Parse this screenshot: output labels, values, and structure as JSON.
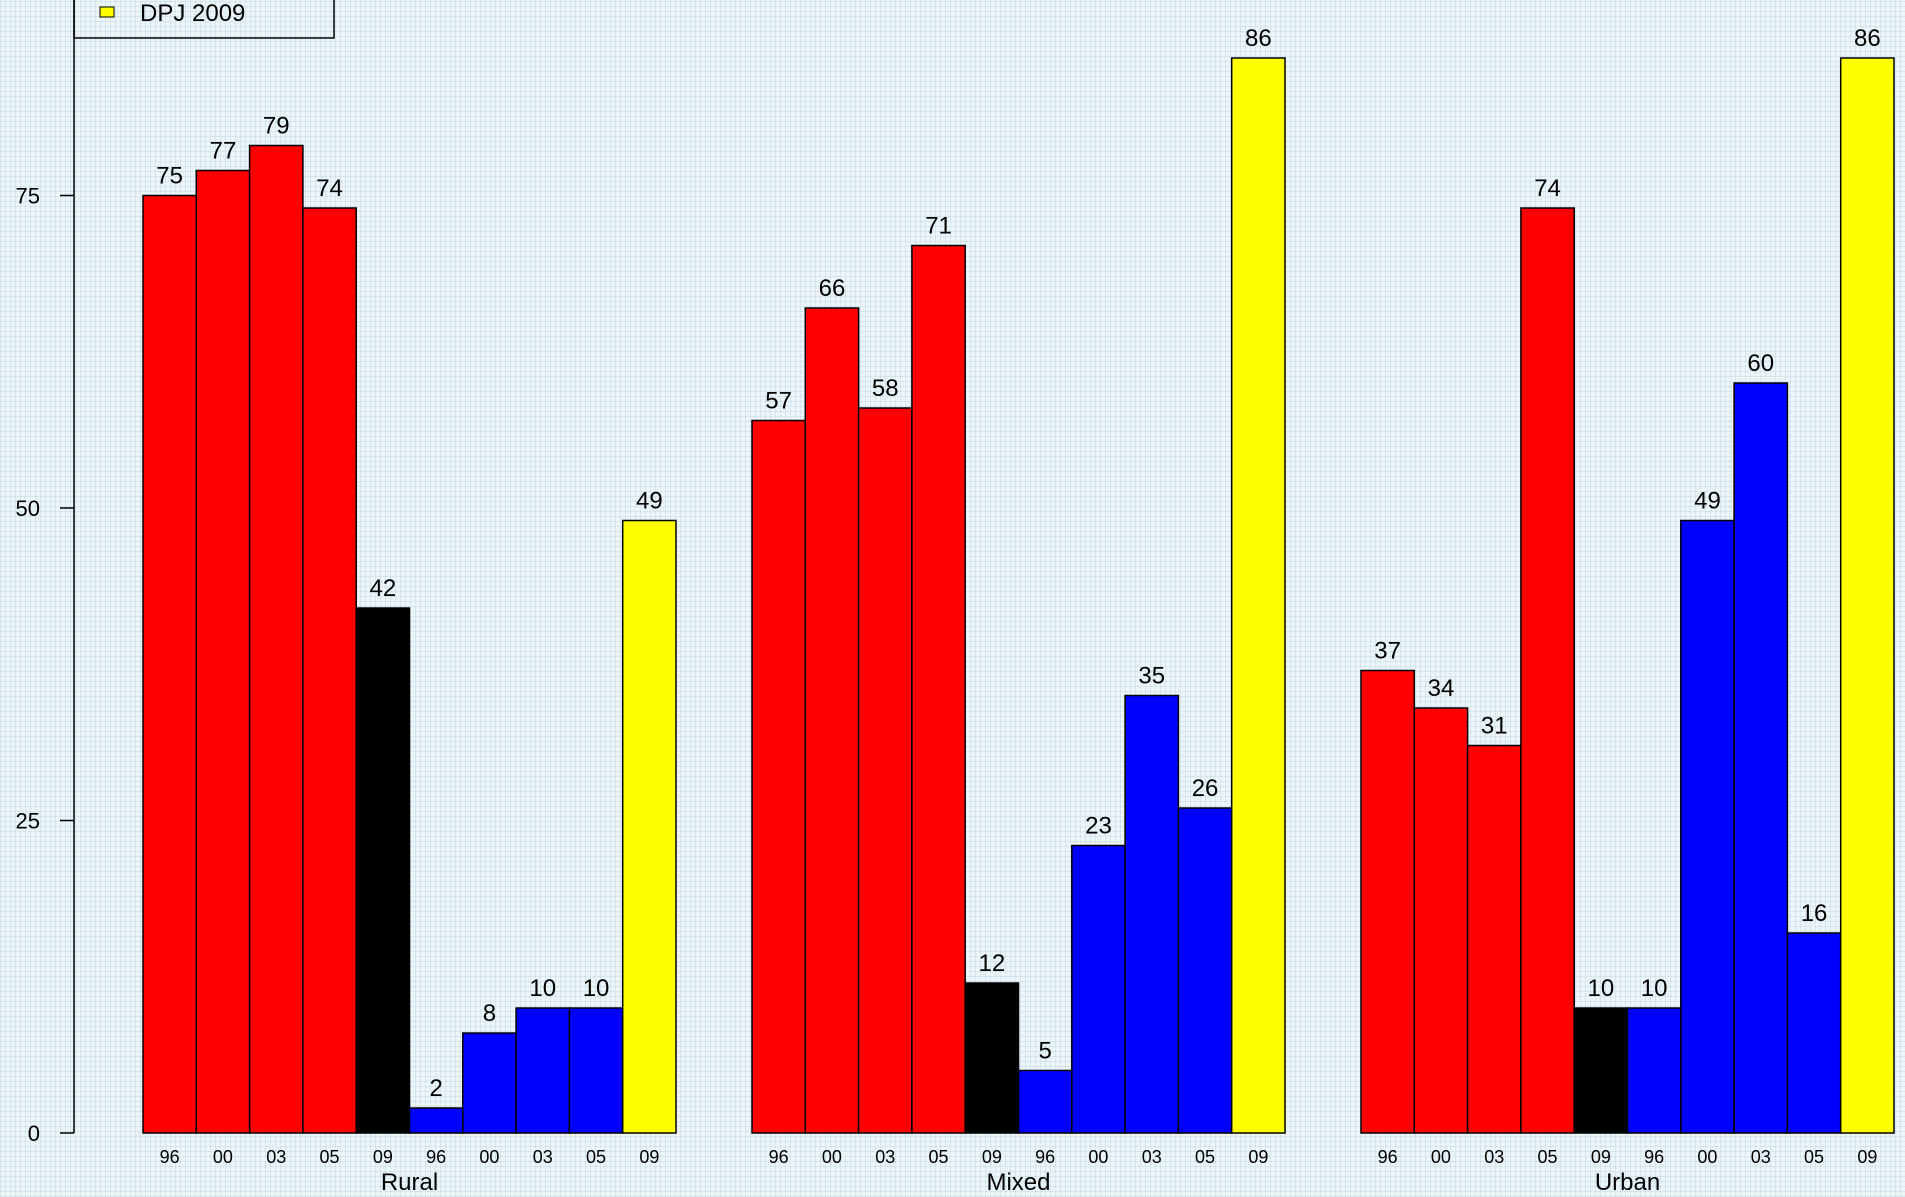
{
  "chart_data": {
    "type": "bar",
    "ylim": [
      0,
      86
    ],
    "yticks": [
      0,
      25,
      50,
      75
    ],
    "bar_labels": [
      "96",
      "00",
      "03",
      "05",
      "09",
      "96",
      "00",
      "03",
      "05",
      "09"
    ],
    "bar_colors": [
      "#ff0000",
      "#ff0000",
      "#ff0000",
      "#ff0000",
      "#000000",
      "#0000ff",
      "#0000ff",
      "#0000ff",
      "#0000ff",
      "#ffff00"
    ],
    "groups": [
      {
        "name": "Rural",
        "values": [
          75,
          77,
          79,
          74,
          42,
          2,
          8,
          10,
          10,
          49
        ]
      },
      {
        "name": "Mixed",
        "values": [
          57,
          66,
          58,
          71,
          12,
          5,
          23,
          35,
          26,
          86
        ]
      },
      {
        "name": "Urban",
        "values": [
          37,
          34,
          31,
          74,
          10,
          10,
          49,
          60,
          16,
          86
        ]
      }
    ],
    "legend": {
      "placement": "top-left",
      "visible_entries": [
        {
          "label": "DPJ 2009",
          "color": "#ffff00"
        }
      ]
    },
    "grid": false
  }
}
